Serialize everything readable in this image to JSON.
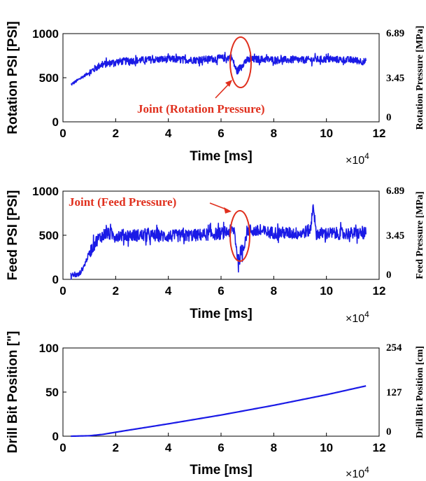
{
  "chart_data": [
    {
      "type": "line",
      "ylabel": "Rotation PSI [PSI]",
      "xlabel": "Time [ms]",
      "x_multiplier_label": "×10",
      "x_multiplier_exp": "4",
      "xlim": [
        0,
        12
      ],
      "xticks": [
        "0",
        "2",
        "4",
        "6",
        "8",
        "10",
        "12"
      ],
      "ylim": [
        0,
        1000
      ],
      "yticks": [
        "0",
        "500",
        "1000"
      ],
      "right_ylabel": "Rotation Pressure [MPa]",
      "right_yticks": [
        "0",
        "3.45",
        "6.89"
      ],
      "line_color": "#1a1ae6",
      "annotation": "Joint (Rotation Pressure)",
      "annotation_color": "#e0301e",
      "series": [
        {
          "x": [
            0.3,
            0.6,
            1.0,
            1.4,
            2.0,
            3.0,
            4.0,
            5.0,
            6.0,
            6.4,
            6.6,
            6.8,
            7.0,
            7.4,
            8.0,
            9.0,
            10.0,
            11.0,
            11.5
          ],
          "y": [
            420,
            480,
            560,
            640,
            680,
            700,
            710,
            700,
            720,
            730,
            570,
            650,
            700,
            710,
            705,
            700,
            710,
            700,
            680
          ],
          "noise": 40
        }
      ]
    },
    {
      "type": "line",
      "ylabel": "Feed PSI [PSI]",
      "xlabel": "Time [ms]",
      "x_multiplier_label": "×10",
      "x_multiplier_exp": "4",
      "xlim": [
        0,
        12
      ],
      "xticks": [
        "0",
        "2",
        "4",
        "6",
        "8",
        "10",
        "12"
      ],
      "ylim": [
        0,
        1000
      ],
      "yticks": [
        "0",
        "500",
        "1000"
      ],
      "right_ylabel": "Feed Pressure [MPa]",
      "right_yticks": [
        "0",
        "3.45",
        "6.89"
      ],
      "line_color": "#1a1ae6",
      "annotation": "Joint (Feed Pressure)",
      "annotation_color": "#e0301e",
      "series": [
        {
          "x": [
            0.3,
            0.5,
            0.6,
            0.8,
            1.0,
            1.3,
            1.6,
            2.0,
            3.0,
            4.0,
            5.0,
            6.0,
            6.5,
            6.65,
            6.8,
            7.0,
            7.5,
            8.0,
            9.0,
            9.4,
            9.5,
            9.6,
            10.0,
            11.0,
            11.5
          ],
          "y": [
            50,
            50,
            50,
            150,
            300,
            450,
            520,
            500,
            500,
            490,
            500,
            520,
            560,
            200,
            300,
            560,
            540,
            530,
            520,
            560,
            880,
            520,
            520,
            520,
            520
          ],
          "noise": 70
        }
      ]
    },
    {
      "type": "line",
      "ylabel": "Drill Bit Position [\"]",
      "xlabel": "Time [ms]",
      "x_multiplier_label": "×10",
      "x_multiplier_exp": "4",
      "xlim": [
        0,
        12
      ],
      "xticks": [
        "0",
        "2",
        "4",
        "6",
        "8",
        "10",
        "12"
      ],
      "ylim": [
        0,
        100
      ],
      "yticks": [
        "0",
        "50",
        "100"
      ],
      "right_ylabel": "Drill Bit Position [cm]",
      "right_yticks": [
        "0",
        "127",
        "254"
      ],
      "line_color": "#1a1ae6",
      "series": [
        {
          "x": [
            0.3,
            1.0,
            1.5,
            2.0,
            4.0,
            6.0,
            8.0,
            10.0,
            11.5
          ],
          "y": [
            0,
            0.5,
            2,
            4.5,
            14,
            24,
            35,
            47,
            57
          ],
          "noise": 0
        }
      ]
    }
  ]
}
